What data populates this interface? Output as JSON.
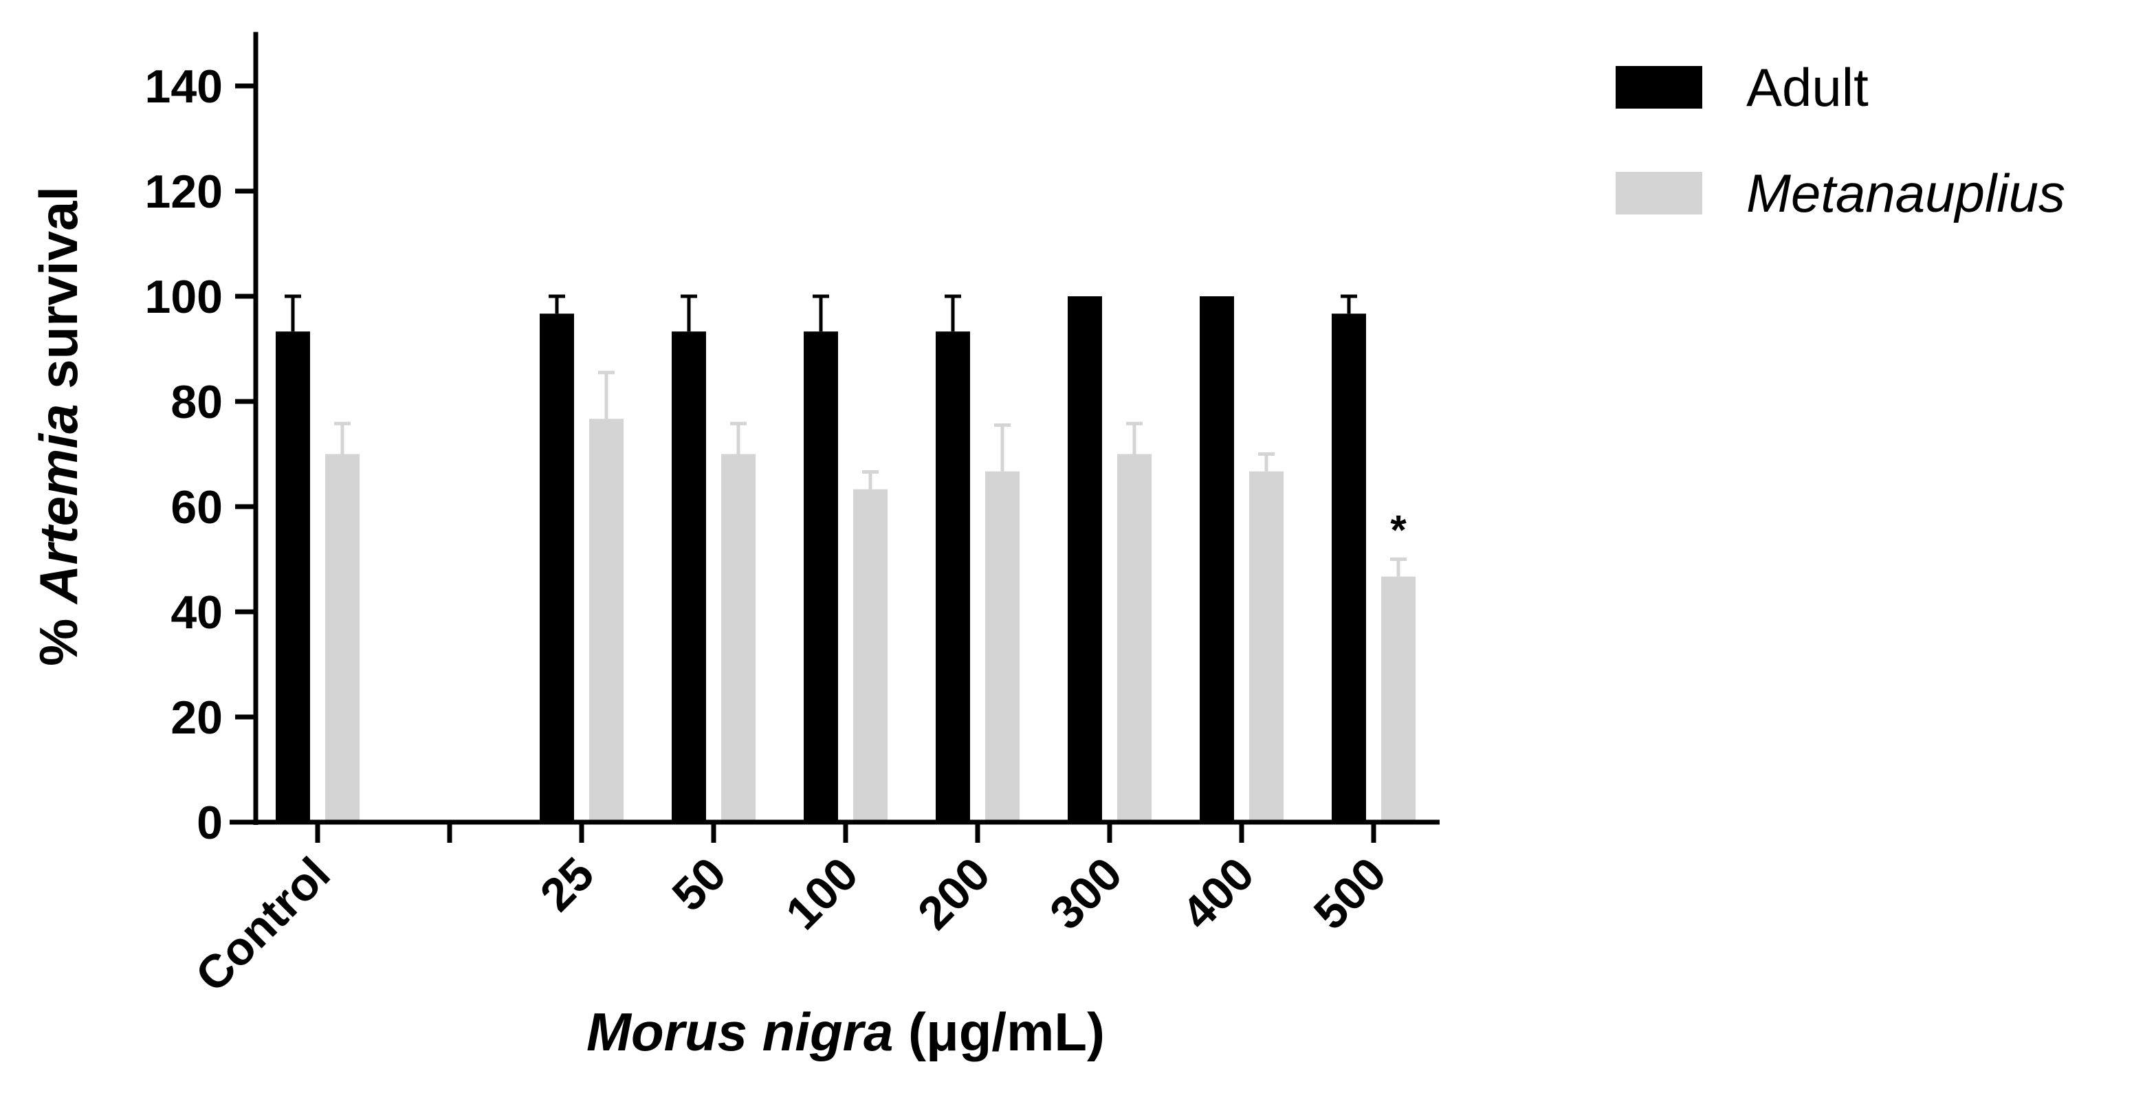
{
  "chart_data": {
    "type": "bar",
    "categories": [
      "Control",
      "",
      "25",
      "50",
      "100",
      "200",
      "300",
      "400",
      "500"
    ],
    "series": [
      {
        "name": "Adult",
        "color": "#000000",
        "values": [
          93.3,
          null,
          96.7,
          93.3,
          93.3,
          93.3,
          100,
          100,
          96.7
        ],
        "errors": [
          6.7,
          null,
          3.3,
          6.7,
          6.7,
          6.7,
          0,
          0,
          3.3
        ]
      },
      {
        "name": "Metanauplius",
        "color": "#d4d4d4",
        "values": [
          70,
          null,
          76.7,
          70,
          63.3,
          66.7,
          70,
          66.7,
          46.7
        ],
        "errors": [
          5.8,
          null,
          8.8,
          5.8,
          3.3,
          8.8,
          5.8,
          3.3,
          3.3
        ]
      }
    ],
    "annotations": [
      {
        "category": "500",
        "series": "Metanauplius",
        "text": "*"
      }
    ],
    "ylabel_prefix": "% ",
    "ylabel_italic": "Artemia",
    "ylabel_suffix": " survival",
    "xlabel_italic": "Morus nigra",
    "xlabel_suffix": " (μg/mL)",
    "ylim": [
      0,
      150
    ],
    "yticks": [
      0,
      20,
      40,
      60,
      80,
      100,
      120,
      140
    ],
    "legend_position": "top-right",
    "grid": false
  }
}
